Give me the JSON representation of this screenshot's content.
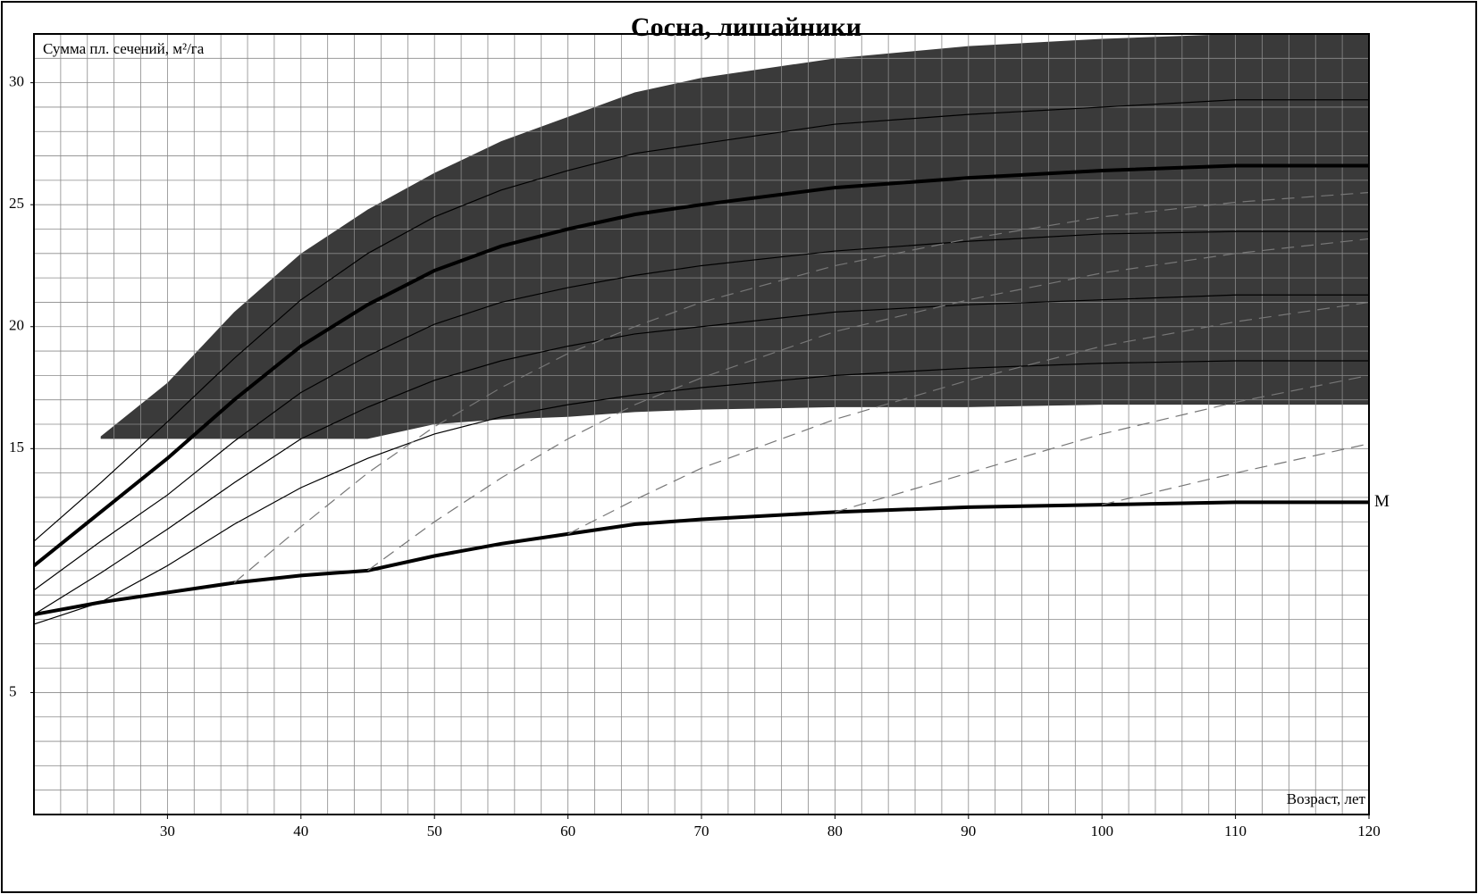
{
  "chart_data": {
    "type": "nomogram",
    "title": "Сосна, лишайники",
    "y_label": "Сумма пл. сечений, м²/га",
    "x_label": "Возраст, лет",
    "x": [
      20,
      25,
      30,
      35,
      40,
      45,
      50,
      55,
      60,
      65,
      70,
      80,
      90,
      100,
      110,
      120
    ],
    "xlim": [
      20,
      120
    ],
    "ylim": [
      0,
      32
    ],
    "xticks": [
      30,
      40,
      50,
      60,
      70,
      80,
      90,
      100,
      110,
      120
    ],
    "yticks": [
      5,
      15,
      20,
      25,
      30
    ],
    "grid": true,
    "minor_grid": {
      "x": 2,
      "y": 1
    },
    "area": {
      "color": "#3a3a3a",
      "values": [
        null,
        15.5,
        17.7,
        20.6,
        23.0,
        24.8,
        26.3,
        27.6,
        28.6,
        29.6,
        30.2,
        31.0,
        31.5,
        31.8,
        32.0,
        32.0
      ],
      "lower": [
        null,
        15.4,
        15.4,
        15.4,
        15.4,
        15.4,
        16.0,
        16.2,
        16.3,
        16.5,
        16.6,
        16.7,
        16.7,
        16.8,
        16.8,
        16.8
      ]
    },
    "series": [
      {
        "name": "M",
        "color": "#000000",
        "width": 4,
        "style": "solid",
        "values": [
          8.2,
          8.7,
          9.1,
          9.5,
          9.8,
          10.0,
          10.6,
          11.1,
          11.5,
          11.9,
          12.1,
          12.4,
          12.6,
          12.7,
          12.8,
          12.8
        ]
      },
      {
        "color": "#000000",
        "width": 4,
        "style": "solid",
        "values": [
          10.2,
          12.4,
          14.6,
          17.0,
          19.2,
          20.9,
          22.3,
          23.3,
          24.0,
          24.6,
          25.0,
          25.7,
          26.1,
          26.4,
          26.6,
          26.6
        ]
      },
      {
        "color": "#000000",
        "width": 1.2,
        "style": "solid",
        "values": [
          11.2,
          13.6,
          16.1,
          18.7,
          21.1,
          23.0,
          24.5,
          25.6,
          26.4,
          27.1,
          27.5,
          28.3,
          28.7,
          29.0,
          29.3,
          29.3
        ]
      },
      {
        "color": "#000000",
        "width": 1.2,
        "style": "solid",
        "values": [
          9.2,
          11.2,
          13.1,
          15.3,
          17.3,
          18.8,
          20.1,
          21.0,
          21.6,
          22.1,
          22.5,
          23.1,
          23.5,
          23.8,
          23.9,
          23.9
        ]
      },
      {
        "color": "#000000",
        "width": 1.2,
        "style": "solid",
        "values": [
          8.2,
          9.9,
          11.7,
          13.6,
          15.4,
          16.7,
          17.8,
          18.6,
          19.2,
          19.7,
          20.0,
          20.6,
          20.9,
          21.1,
          21.3,
          21.3
        ]
      },
      {
        "color": "#000000",
        "width": 1.2,
        "style": "solid",
        "values": [
          7.8,
          8.7,
          10.2,
          11.9,
          13.4,
          14.6,
          15.6,
          16.3,
          16.8,
          17.2,
          17.5,
          18.0,
          18.3,
          18.5,
          18.6,
          18.6
        ]
      },
      {
        "color": "#777777",
        "width": 1.2,
        "style": "dashed",
        "values": [
          null,
          null,
          null,
          9.5,
          11.8,
          14.0,
          15.9,
          17.5,
          18.9,
          20.0,
          21.0,
          22.5,
          23.6,
          24.5,
          25.1,
          25.5
        ]
      },
      {
        "color": "#777777",
        "width": 1.2,
        "style": "dashed",
        "values": [
          null,
          null,
          null,
          null,
          null,
          10.0,
          12.0,
          13.8,
          15.4,
          16.8,
          17.9,
          19.8,
          21.1,
          22.2,
          23.0,
          23.6
        ]
      },
      {
        "color": "#777777",
        "width": 1.2,
        "style": "dashed",
        "values": [
          null,
          null,
          null,
          null,
          null,
          null,
          null,
          null,
          11.5,
          12.9,
          14.2,
          16.2,
          17.8,
          19.2,
          20.2,
          21.0
        ]
      },
      {
        "color": "#777777",
        "width": 1.2,
        "style": "dashed",
        "values": [
          null,
          null,
          null,
          null,
          null,
          null,
          null,
          null,
          null,
          null,
          null,
          12.4,
          14.0,
          15.6,
          16.9,
          18.0
        ]
      },
      {
        "color": "#777777",
        "width": 1.2,
        "style": "dashed",
        "values": [
          null,
          null,
          null,
          null,
          null,
          null,
          null,
          null,
          null,
          null,
          null,
          null,
          null,
          12.7,
          14.0,
          15.2
        ]
      }
    ]
  }
}
